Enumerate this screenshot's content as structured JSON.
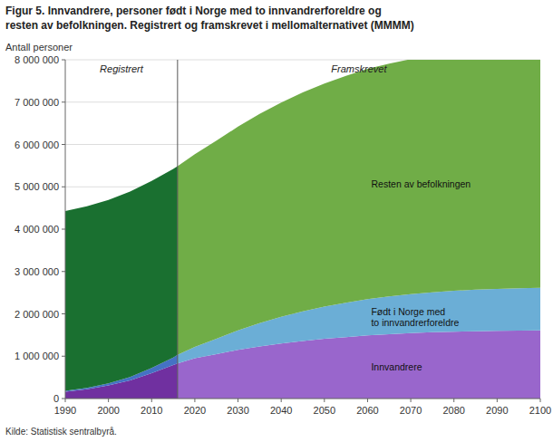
{
  "chart_data": {
    "type": "area",
    "stacked": true,
    "grid": true,
    "title": "Figur 5. Innvandrere, personer født i Norge med to innvandrerforeldre og",
    "subtitle": "resten av befolkningen. Registrert og framskrevet i mellomalternativet (MMMM)",
    "y_label": "Antall personer",
    "source": "Kilde: Statistisk sentralbyrå.",
    "annotations": [
      "Registrert",
      "Framskrevet"
    ],
    "split_x": 2016,
    "xlim": [
      1990,
      2100
    ],
    "xticks": [
      1990,
      2000,
      2010,
      2020,
      2030,
      2040,
      2050,
      2060,
      2070,
      2080,
      2090,
      2100
    ],
    "ylim": [
      0,
      8000000
    ],
    "yticks": [
      0,
      {
        "value": 1000000,
        "label": "1 000 000"
      },
      {
        "value": 2000000,
        "label": "2 000 000"
      },
      {
        "value": 3000000,
        "label": "3 000 000"
      },
      {
        "value": 4000000,
        "label": "4 000 000"
      },
      {
        "value": 5000000,
        "label": "5 000 000"
      },
      {
        "value": 6000000,
        "label": "6 000 000"
      },
      {
        "value": 7000000,
        "label": "7 000 000"
      },
      {
        "value": 8000000,
        "label": "8 000 000"
      }
    ],
    "series": [
      {
        "color": "#7030A0",
        "x": [
          1990,
          1995,
          2000,
          2005,
          2010,
          2015,
          2016
        ],
        "values": [
          160000,
          220000,
          310000,
          430000,
          600000,
          790000,
          830000
        ]
      },
      {
        "color": "#4472C4",
        "x": [
          1990,
          1995,
          2000,
          2005,
          2010,
          2015,
          2016
        ],
        "values": [
          20000,
          30000,
          50000,
          80000,
          120000,
          180000,
          200000
        ]
      },
      {
        "color": "#1A7030",
        "x": [
          1990,
          1995,
          2000,
          2005,
          2010,
          2015,
          2016
        ],
        "values": [
          4250000,
          4290000,
          4330000,
          4380000,
          4420000,
          4450000,
          4455000
        ]
      },
      {
        "color": "#9966CC",
        "label": "Innvandrere",
        "x": [
          2016,
          2020,
          2025,
          2030,
          2035,
          2040,
          2045,
          2050,
          2055,
          2060,
          2065,
          2070,
          2075,
          2080,
          2085,
          2090,
          2095,
          2100
        ],
        "values": [
          830000,
          950000,
          1050000,
          1150000,
          1230000,
          1300000,
          1360000,
          1410000,
          1450000,
          1490000,
          1520000,
          1545000,
          1565000,
          1580000,
          1590000,
          1600000,
          1605000,
          1610000
        ]
      },
      {
        "color": "#6BAED6",
        "label": "Født i Norge med\nto innvandrerforeldre",
        "x": [
          2016,
          2020,
          2025,
          2030,
          2035,
          2040,
          2045,
          2050,
          2055,
          2060,
          2065,
          2070,
          2075,
          2080,
          2085,
          2090,
          2095,
          2100
        ],
        "values": [
          200000,
          270000,
          360000,
          460000,
          550000,
          630000,
          700000,
          760000,
          810000,
          855000,
          890000,
          920000,
          945000,
          965000,
          980000,
          990000,
          998000,
          1005000
        ]
      },
      {
        "color": "#70AD47",
        "label": "Resten av befolkningen",
        "x": [
          2016,
          2020,
          2025,
          2030,
          2035,
          2040,
          2045,
          2050,
          2055,
          2060,
          2065,
          2070,
          2075,
          2080,
          2085,
          2090,
          2095,
          2100
        ],
        "values": [
          4455000,
          4550000,
          4680000,
          4810000,
          4940000,
          5060000,
          5170000,
          5270000,
          5360000,
          5440000,
          5500000,
          5550000,
          5590000,
          5620000,
          5645000,
          5665000,
          5680000,
          5690000
        ]
      }
    ]
  }
}
